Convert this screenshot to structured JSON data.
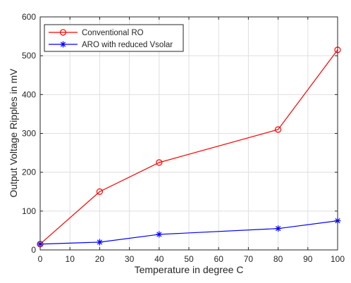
{
  "chart_data": {
    "type": "line",
    "xlabel": "Temperature in degree C",
    "ylabel": "Output Voltage Ripples in mV",
    "xlim": [
      0,
      100
    ],
    "ylim": [
      0,
      600
    ],
    "xticks": [
      "0",
      "10",
      "20",
      "30",
      "40",
      "50",
      "60",
      "70",
      "80",
      "90",
      "100"
    ],
    "yticks": [
      "0",
      "100",
      "200",
      "300",
      "400",
      "500",
      "600"
    ],
    "grid": true,
    "legend_position": "top-left",
    "series": [
      {
        "name": "Conventional RO",
        "color": "#ff0000",
        "marker": "circle",
        "x": [
          0,
          20,
          40,
          80,
          100
        ],
        "y": [
          15,
          150,
          225,
          310,
          515
        ]
      },
      {
        "name": "ARO with reduced Vsolar",
        "color": "#0000ff",
        "marker": "asterisk",
        "x": [
          0,
          20,
          40,
          80,
          100
        ],
        "y": [
          15,
          20,
          40,
          55,
          75
        ]
      }
    ]
  }
}
